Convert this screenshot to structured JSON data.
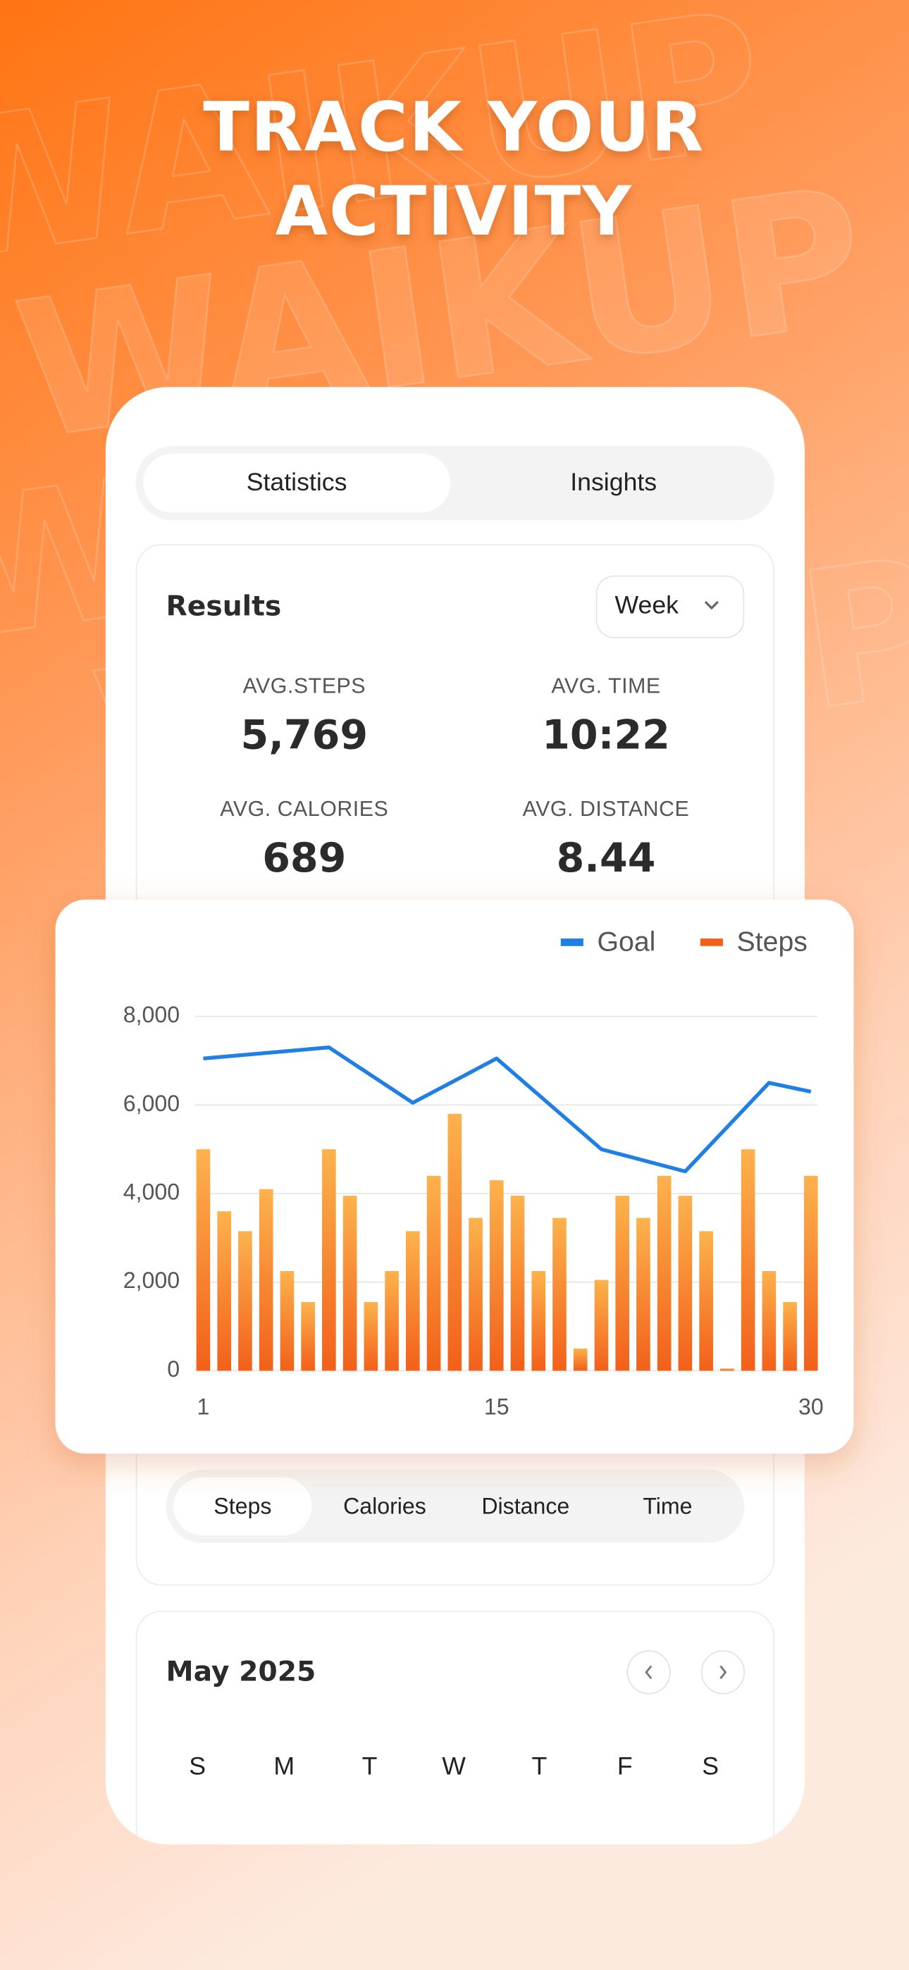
{
  "header": {
    "title_line1": "TRACK YOUR",
    "title_line2": "ACTIVITY"
  },
  "background_text": "WAIKUP",
  "tabs": [
    "Statistics",
    "Insights"
  ],
  "results": {
    "title": "Results",
    "period": "Week",
    "stats": [
      {
        "label": "AVG.STEPS",
        "value": "5,769"
      },
      {
        "label": "AVG. TIME",
        "value": "10:22"
      },
      {
        "label": "AVG. CALORIES",
        "value": "689"
      },
      {
        "label": "AVG. DISTANCE",
        "value": "8.44"
      }
    ]
  },
  "chart_data": {
    "type": "bar",
    "x": [
      1,
      2,
      3,
      4,
      5,
      6,
      7,
      8,
      9,
      10,
      11,
      12,
      13,
      14,
      15,
      16,
      17,
      18,
      19,
      20,
      21,
      22,
      23,
      24,
      25,
      26,
      27,
      28,
      29,
      30
    ],
    "series": [
      {
        "name": "Goal",
        "color": "#1f7fe5",
        "type": "line",
        "x": [
          1,
          7,
          11,
          15,
          20,
          24,
          28,
          30
        ],
        "values": [
          7050,
          7300,
          6050,
          7050,
          5000,
          4500,
          6500,
          6300
        ]
      },
      {
        "name": "Steps",
        "color": "#f2601a",
        "values": [
          5000,
          3600,
          3150,
          4100,
          2250,
          1550,
          5000,
          3950,
          1550,
          2250,
          3150,
          4400,
          5800,
          3450,
          4300,
          3950,
          2250,
          3450,
          500,
          2050,
          3950,
          3450,
          4400,
          3950,
          3150,
          50,
          5000,
          2250,
          1550,
          4400
        ]
      }
    ],
    "xlim": [
      0.6,
      30.3
    ],
    "xticks": [
      1,
      15,
      30
    ],
    "ylim": [
      0,
      8000
    ],
    "yticks": [
      0,
      {
        "value": 2000,
        "label": "2,000"
      },
      {
        "value": 4000,
        "label": "4,000"
      },
      {
        "value": 6000,
        "label": "6,000"
      },
      {
        "value": 8000,
        "label": "8,000"
      }
    ],
    "grid": true,
    "legend": "top-right"
  },
  "metric_tabs": [
    "Steps",
    "Calories",
    "Distance",
    "Time"
  ],
  "calendar": {
    "title": "May 2025",
    "weekdays": [
      "S",
      "M",
      "T",
      "W",
      "T",
      "F",
      "S"
    ]
  }
}
